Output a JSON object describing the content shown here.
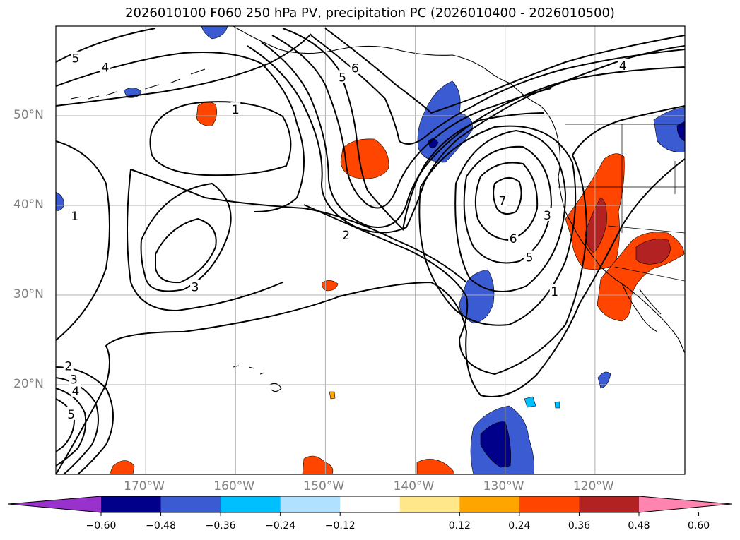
{
  "title": "2026010100 F060 250 hPa PV, precipitation PC (2026010400 - 2026010500)",
  "map": {
    "lon_range": [
      -180,
      -110
    ],
    "lat_range": [
      10,
      60
    ],
    "lon_ticks": [
      {
        "value": -170,
        "label": "170°W"
      },
      {
        "value": -160,
        "label": "160°W"
      },
      {
        "value": -150,
        "label": "150°W"
      },
      {
        "value": -140,
        "label": "140°W"
      },
      {
        "value": -130,
        "label": "130°W"
      },
      {
        "value": -120,
        "label": "120°W"
      }
    ],
    "lat_ticks": [
      {
        "value": 50,
        "label": "50°N"
      },
      {
        "value": 40,
        "label": "40°N"
      },
      {
        "value": 30,
        "label": "30°N"
      },
      {
        "value": 20,
        "label": "20°N"
      }
    ],
    "grid": true,
    "pv_contour_labels": [
      {
        "text": "5",
        "lon": -177.8,
        "lat": 56.4
      },
      {
        "text": "4",
        "lon": -174.5,
        "lat": 55.4
      },
      {
        "text": "1",
        "lon": -160,
        "lat": 50.7
      },
      {
        "text": "6",
        "lon": -146.7,
        "lat": 55.3
      },
      {
        "text": "5",
        "lon": -148.1,
        "lat": 54.3
      },
      {
        "text": "4",
        "lon": -116.9,
        "lat": 55.6
      },
      {
        "text": "7",
        "lon": -130.3,
        "lat": 40.5
      },
      {
        "text": "6",
        "lon": -129.1,
        "lat": 36.3
      },
      {
        "text": "5",
        "lon": -127.3,
        "lat": 34.2
      },
      {
        "text": "3",
        "lon": -125.3,
        "lat": 38.9
      },
      {
        "text": "1",
        "lon": -124.5,
        "lat": 30.4
      },
      {
        "text": "2",
        "lon": -147.7,
        "lat": 36.7
      },
      {
        "text": "1",
        "lon": -177.9,
        "lat": 38.8
      },
      {
        "text": "3",
        "lon": -164.5,
        "lat": 30.9
      },
      {
        "text": "2",
        "lon": -178.6,
        "lat": 22.1
      },
      {
        "text": "3",
        "lon": -178.0,
        "lat": 20.6
      },
      {
        "text": "4",
        "lon": -177.8,
        "lat": 19.3
      },
      {
        "text": "5",
        "lon": -178.3,
        "lat": 16.7
      }
    ]
  },
  "colorbar": {
    "colors": [
      "#9932cc",
      "#00008b",
      "#3a5bd1",
      "#00bfff",
      "#b0e2ff",
      "#ffffff",
      "#ffe78a",
      "#ffa500",
      "#ff4500",
      "#b22222",
      "#ff85b0"
    ],
    "tick_labels": [
      "−0.60",
      "−0.48",
      "−0.36",
      "−0.24",
      "−0.12",
      "0.12",
      "0.24",
      "0.36",
      "0.48",
      "0.60"
    ]
  }
}
